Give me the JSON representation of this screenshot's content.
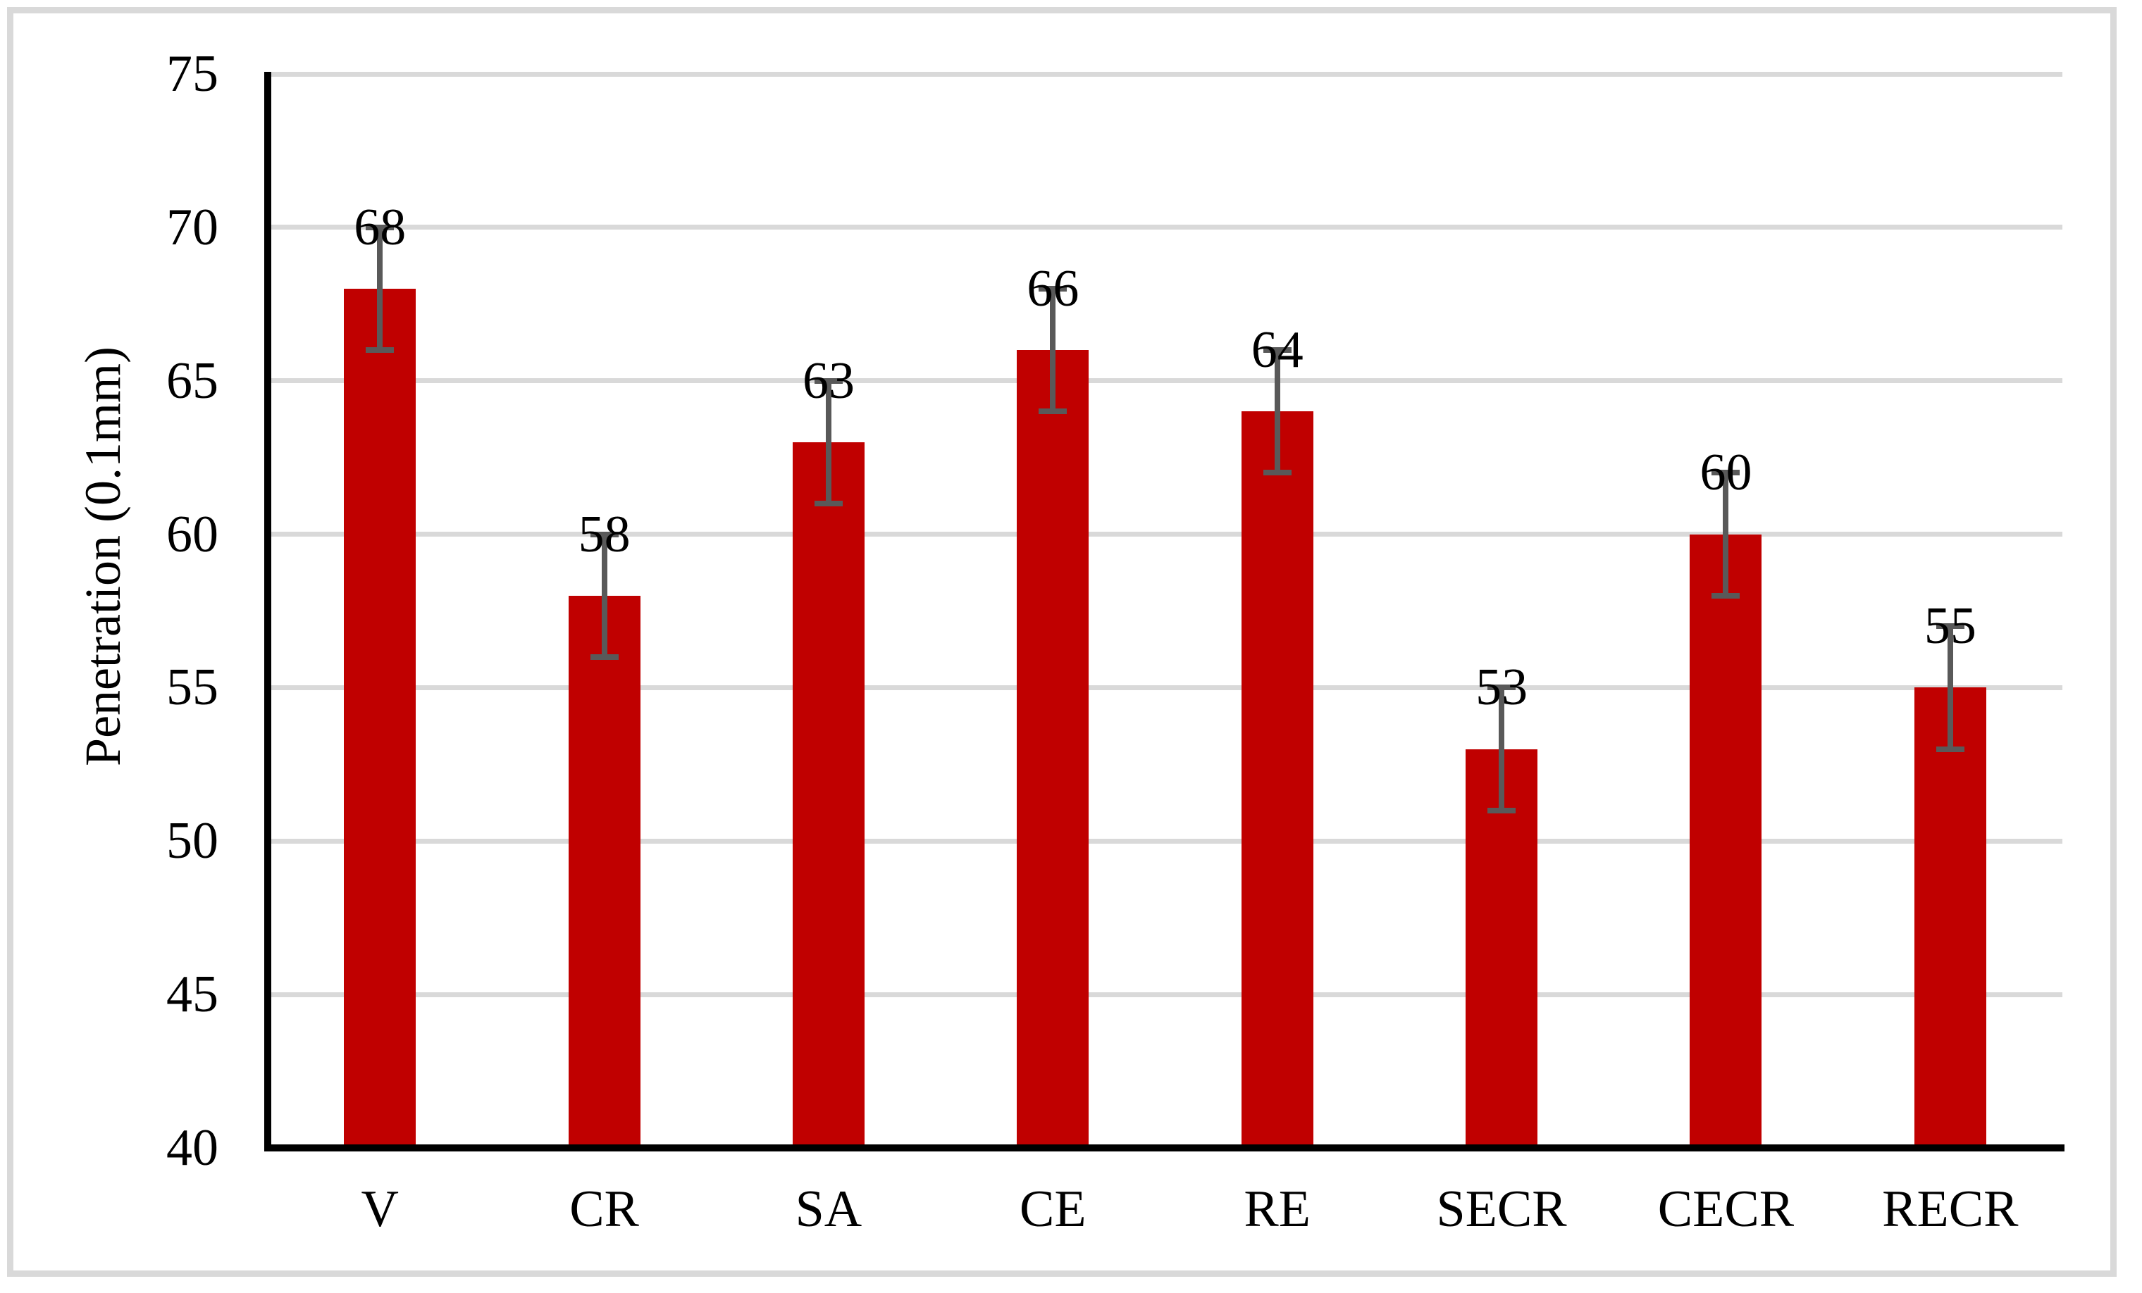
{
  "chart_data": {
    "type": "bar",
    "title": "",
    "categories": [
      "V",
      "CR",
      "SA",
      "CE",
      "RE",
      "SECR",
      "CECR",
      "RECR"
    ],
    "values": [
      68,
      58,
      63,
      66,
      64,
      53,
      60,
      55
    ],
    "errors": [
      2,
      2,
      2,
      2,
      2,
      2,
      2,
      2
    ],
    "data_labels": [
      "68",
      "58",
      "63",
      "66",
      "64",
      "53",
      "60",
      "55"
    ],
    "xlabel": "",
    "ylabel": "Penetration (0.1mm)",
    "ylim": [
      40,
      75
    ],
    "ytick_step": 5,
    "ytick_labels": [
      "40",
      "45",
      "50",
      "55",
      "60",
      "65",
      "70",
      "75"
    ],
    "grid": "horizontal-major",
    "legend": "none",
    "series_name": "Penetration",
    "colors": {
      "bar": "#C00000",
      "error_bar": "#595959",
      "gridline": "#D9D9D9",
      "axis": "#000000",
      "frame": "#D9D9D9",
      "background": "#FFFFFF",
      "text": "#000000"
    }
  }
}
